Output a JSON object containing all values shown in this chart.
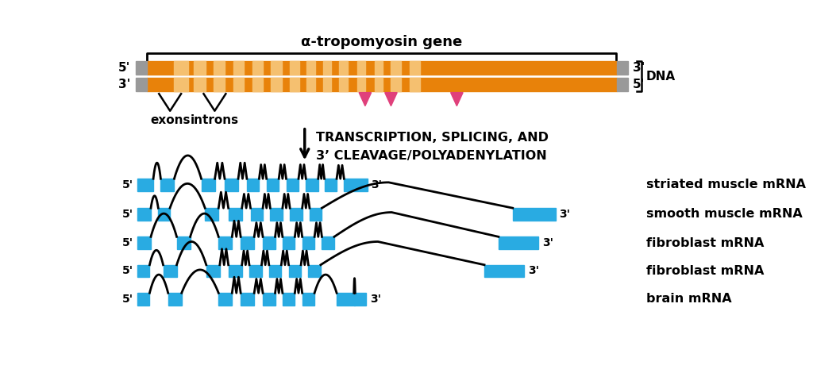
{
  "background_color": "#ffffff",
  "orange_exon": "#E8820A",
  "light_orange_intron": "#F5C070",
  "gray_end": "#999999",
  "blue_exon": "#29ABE2",
  "pink_arrow": "#E0407B",
  "mrna_labels": [
    "striated muscle mRNA",
    "smooth muscle mRNA",
    "fibroblast mRNA",
    "fibroblast mRNA",
    "brain mRNA"
  ],
  "arrow_text_line1": "TRANSCRIPTION, SPLICING, AND",
  "arrow_text_line2": "3’ CLEAVAGE/POLYADENYLATION",
  "gene_label": "α-tropomyosin gene"
}
